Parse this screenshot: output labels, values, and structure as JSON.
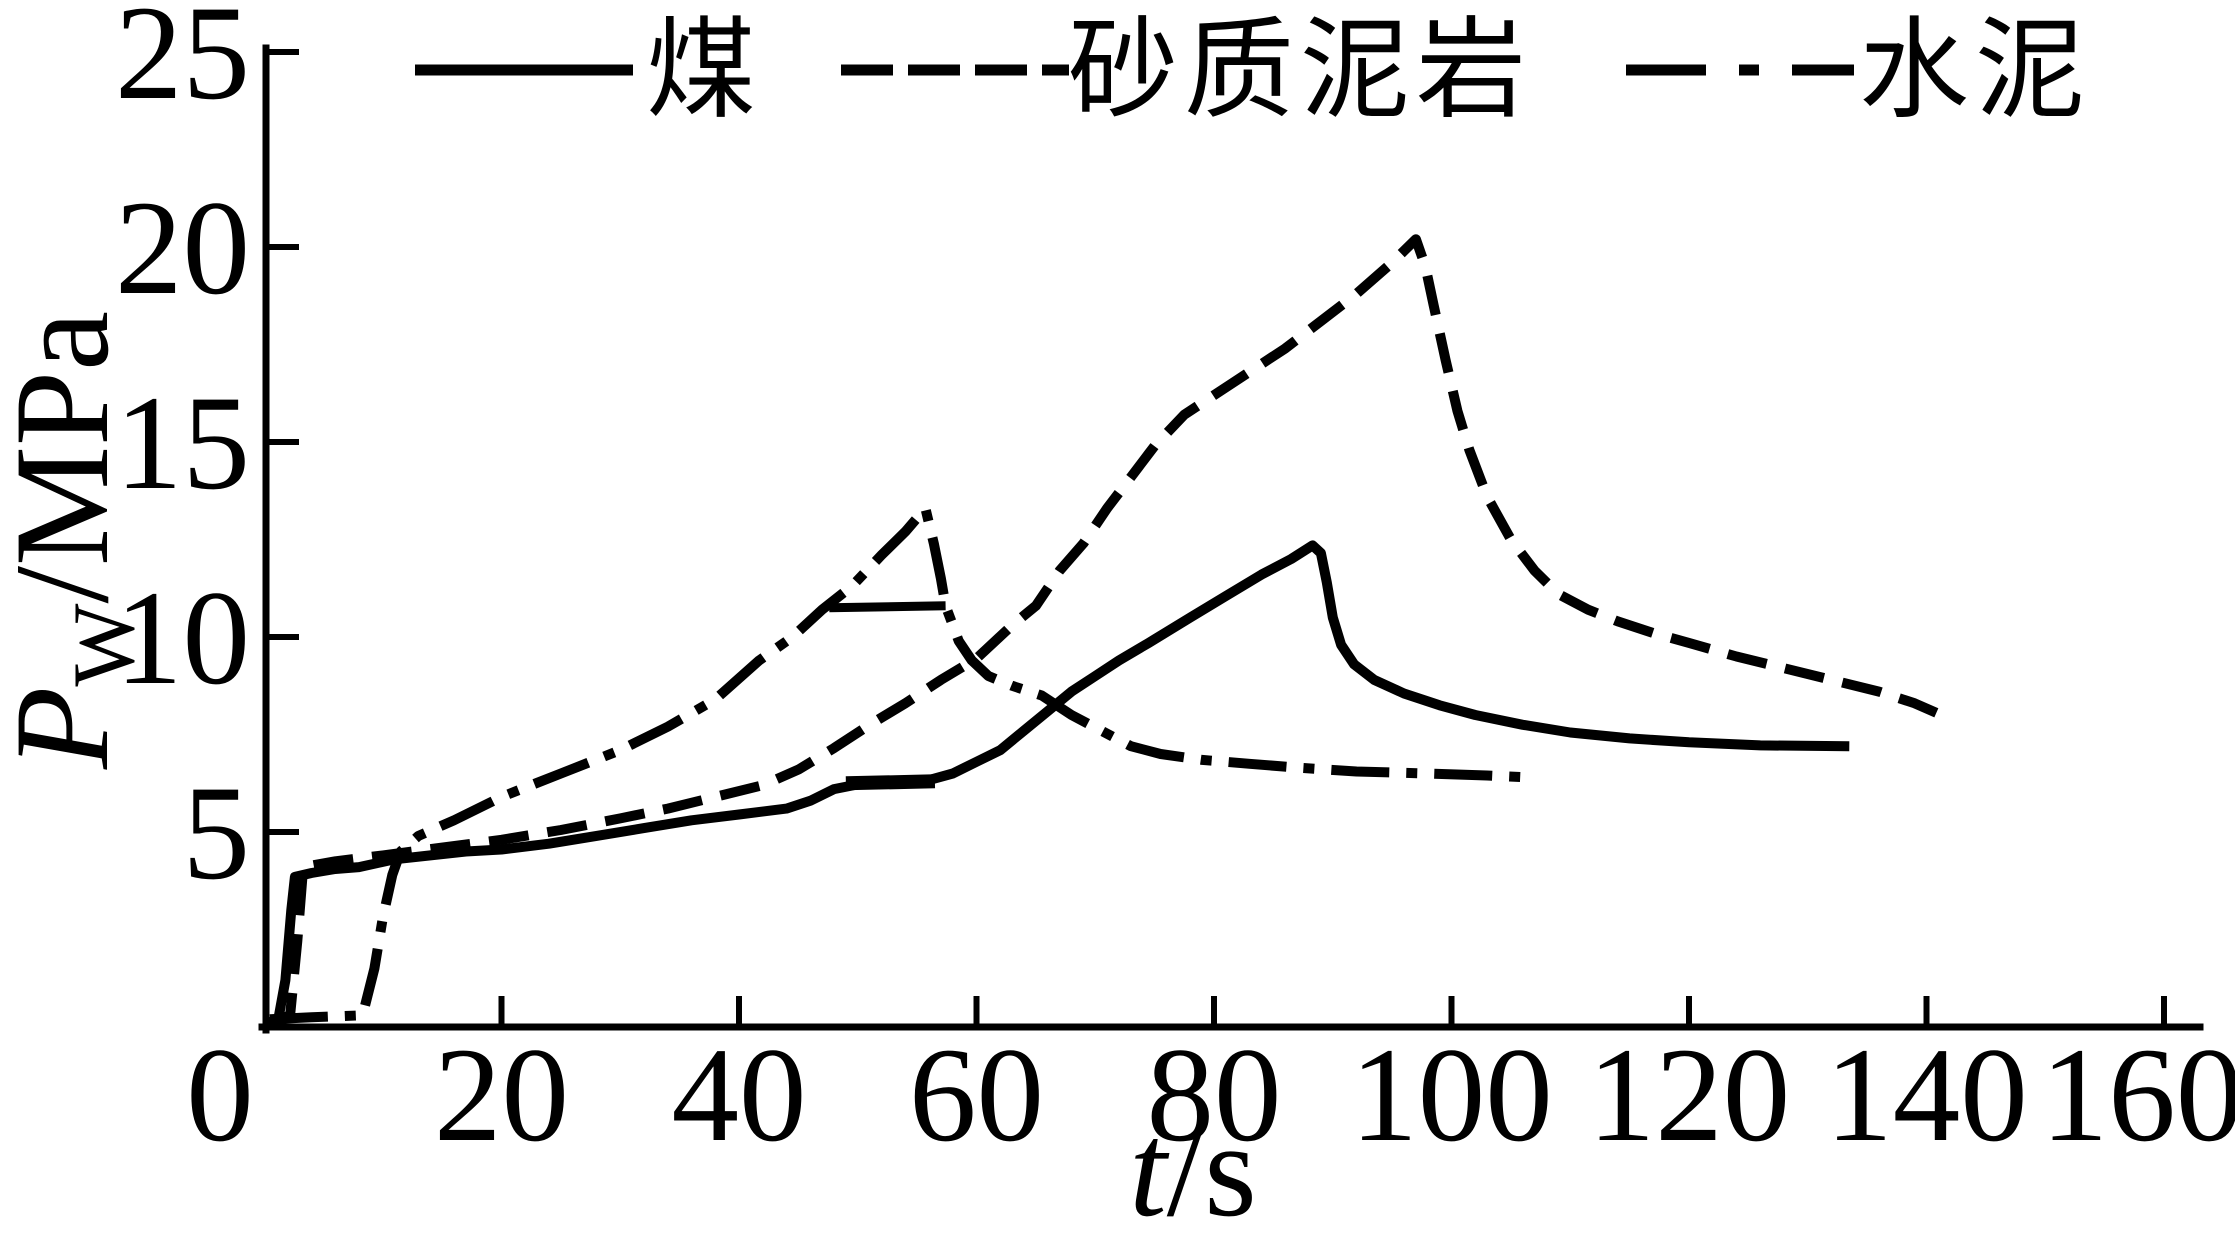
{
  "figure": {
    "background": "#ffffff",
    "ink": "#000000"
  },
  "chart_data": {
    "type": "line",
    "title": "",
    "xlabel": "t/s",
    "ylabel": "Pw/MPa",
    "axis_labels": {
      "x_var": "t",
      "x_unit": "/s",
      "y_var": "P",
      "y_sub": "W",
      "y_unit": "/MPa"
    },
    "xlim": [
      0,
      160
    ],
    "ylim": [
      0,
      25
    ],
    "xticks": [
      0,
      20,
      40,
      60,
      80,
      100,
      120,
      140,
      160
    ],
    "yticks": [
      5,
      10,
      15,
      20,
      25
    ],
    "grid": false,
    "legend_position": "top-inside",
    "series": [
      {
        "id": "coal",
        "name": "煤",
        "style": "solid",
        "points": [
          [
            0.3,
            0.1
          ],
          [
            1.2,
            0.2
          ],
          [
            1.8,
            1.2
          ],
          [
            2.3,
            3.0
          ],
          [
            2.6,
            3.85
          ],
          [
            4,
            3.95
          ],
          [
            6,
            4.05
          ],
          [
            8,
            4.1
          ],
          [
            11,
            4.3
          ],
          [
            14,
            4.4
          ],
          [
            17,
            4.5
          ],
          [
            20,
            4.55
          ],
          [
            24,
            4.7
          ],
          [
            28,
            4.9
          ],
          [
            32,
            5.1
          ],
          [
            36,
            5.3
          ],
          [
            40,
            5.45
          ],
          [
            44,
            5.6
          ],
          [
            46,
            5.8
          ],
          [
            48,
            6.1
          ],
          [
            50,
            6.22
          ],
          [
            53,
            6.28
          ],
          [
            56,
            6.33
          ],
          [
            58,
            6.5
          ],
          [
            60,
            6.8
          ],
          [
            62,
            7.1
          ],
          [
            64,
            7.6
          ],
          [
            66,
            8.1
          ],
          [
            68,
            8.6
          ],
          [
            70,
            9.0
          ],
          [
            72,
            9.4
          ],
          [
            74.5,
            9.85
          ],
          [
            78,
            10.5
          ],
          [
            81,
            11.05
          ],
          [
            84,
            11.6
          ],
          [
            86.5,
            12.0
          ],
          [
            88.3,
            12.35
          ],
          [
            89,
            12.15
          ],
          [
            89.5,
            11.4
          ],
          [
            90,
            10.5
          ],
          [
            90.7,
            9.8
          ],
          [
            91.8,
            9.3
          ],
          [
            93.5,
            8.9
          ],
          [
            96,
            8.55
          ],
          [
            99,
            8.25
          ],
          [
            102,
            8.0
          ],
          [
            106,
            7.75
          ],
          [
            110,
            7.55
          ],
          [
            115,
            7.4
          ],
          [
            120,
            7.3
          ],
          [
            126,
            7.22
          ],
          [
            133.5,
            7.2
          ]
        ]
      },
      {
        "id": "sandy-mudstone",
        "name": "砂质泥岩",
        "style": "dashed",
        "points": [
          [
            0.8,
            0.15
          ],
          [
            2.2,
            0.3
          ],
          [
            2.8,
            2.2
          ],
          [
            3.3,
            4.1
          ],
          [
            6,
            4.25
          ],
          [
            10,
            4.4
          ],
          [
            15,
            4.6
          ],
          [
            20,
            4.8
          ],
          [
            25,
            5.05
          ],
          [
            30,
            5.35
          ],
          [
            34,
            5.6
          ],
          [
            38,
            5.9
          ],
          [
            42,
            6.2
          ],
          [
            45,
            6.6
          ],
          [
            48,
            7.15
          ],
          [
            51,
            7.75
          ],
          [
            54,
            8.3
          ],
          [
            57,
            8.9
          ],
          [
            60,
            9.45
          ],
          [
            63,
            10.3
          ],
          [
            65,
            10.8
          ],
          [
            67,
            11.7
          ],
          [
            69,
            12.4
          ],
          [
            71,
            13.3
          ],
          [
            73,
            14.1
          ],
          [
            75,
            14.9
          ],
          [
            77.5,
            15.7
          ],
          [
            80,
            16.2
          ],
          [
            83,
            16.8
          ],
          [
            86,
            17.4
          ],
          [
            89,
            18.1
          ],
          [
            92,
            18.8
          ],
          [
            95,
            19.6
          ],
          [
            97,
            20.2
          ],
          [
            97.8,
            19.5
          ],
          [
            98.5,
            18.5
          ],
          [
            99.5,
            17.1
          ],
          [
            100.5,
            15.8
          ],
          [
            101.5,
            14.8
          ],
          [
            103,
            13.6
          ],
          [
            105,
            12.5
          ],
          [
            107,
            11.7
          ],
          [
            109,
            11.1
          ],
          [
            111.5,
            10.7
          ],
          [
            114,
            10.4
          ],
          [
            117,
            10.1
          ],
          [
            120,
            9.85
          ],
          [
            124,
            9.5
          ],
          [
            128,
            9.2
          ],
          [
            132,
            8.9
          ],
          [
            136,
            8.6
          ],
          [
            139,
            8.3
          ],
          [
            142,
            7.9
          ]
        ]
      },
      {
        "id": "cement",
        "name": "水泥",
        "style": "dashdot",
        "points": [
          [
            0.5,
            0.2
          ],
          [
            4,
            0.25
          ],
          [
            8.3,
            0.3
          ],
          [
            9.3,
            1.5
          ],
          [
            10,
            2.8
          ],
          [
            10.8,
            3.9
          ],
          [
            11.5,
            4.5
          ],
          [
            13,
            4.9
          ],
          [
            16,
            5.3
          ],
          [
            20,
            5.9
          ],
          [
            25,
            6.5
          ],
          [
            30,
            7.1
          ],
          [
            34,
            7.7
          ],
          [
            38,
            8.4
          ],
          [
            41.7,
            9.4
          ],
          [
            44.5,
            10.0
          ],
          [
            47,
            10.7
          ],
          [
            49.5,
            11.3
          ],
          [
            52,
            12.1
          ],
          [
            54,
            12.7
          ],
          [
            55.7,
            13.3
          ],
          [
            56.4,
            12.4
          ],
          [
            57,
            11.5
          ],
          [
            57.4,
            10.8
          ],
          [
            58.5,
            9.9
          ],
          [
            59.6,
            9.4
          ],
          [
            61,
            9.0
          ],
          [
            63,
            8.75
          ],
          [
            65.5,
            8.5
          ],
          [
            68,
            8.0
          ],
          [
            70.5,
            7.6
          ],
          [
            73,
            7.2
          ],
          [
            75.5,
            7.0
          ],
          [
            79,
            6.85
          ],
          [
            83,
            6.75
          ],
          [
            87,
            6.65
          ],
          [
            92,
            6.55
          ],
          [
            98,
            6.5
          ],
          [
            103,
            6.45
          ],
          [
            106.5,
            6.4
          ]
        ]
      }
    ],
    "annotations": [
      {
        "id": "cement-spike-base",
        "style": "solid",
        "stroke_width": 9,
        "points": [
          [
            47.6,
            10.75
          ],
          [
            57.4,
            10.8
          ]
        ]
      },
      {
        "id": "coal-plateau-bar",
        "style": "solid",
        "stroke_width": 14,
        "points": [
          [
            49,
            6.25
          ],
          [
            56.5,
            6.3
          ]
        ]
      }
    ]
  }
}
